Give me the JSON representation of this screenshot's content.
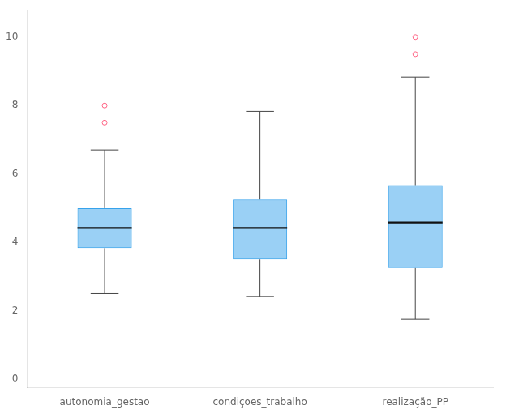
{
  "chart_data": {
    "type": "box",
    "categories": [
      "autonomia_gestao",
      "condiçoes_trabalho",
      "realização_PP"
    ],
    "boxes": [
      {
        "q1": 3.83,
        "median": 4.42,
        "q3": 5.0,
        "whisker_low": 2.5,
        "whisker_high": 6.7,
        "outliers": [
          7.5,
          8.0
        ]
      },
      {
        "q1": 3.5,
        "median": 4.42,
        "q3": 5.25,
        "whisker_low": 2.42,
        "whisker_high": 7.83,
        "outliers": []
      },
      {
        "q1": 3.25,
        "median": 4.58,
        "q3": 5.67,
        "whisker_low": 1.75,
        "whisker_high": 8.83,
        "outliers": [
          9.5,
          10.0
        ]
      }
    ],
    "ylim": [
      -0.25,
      10.8
    ],
    "yticks": [
      0,
      2,
      4,
      6,
      8,
      10
    ],
    "grid": false
  }
}
